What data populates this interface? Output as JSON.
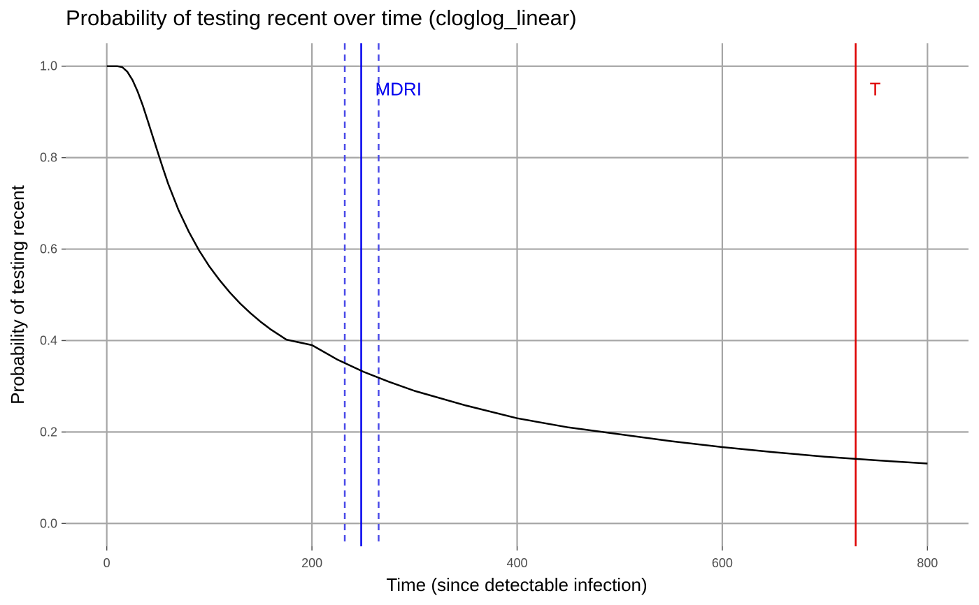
{
  "chart_data": {
    "type": "line",
    "title": "Probability of testing recent over time (cloglog_linear)",
    "xlabel": "Time (since detectable infection)",
    "ylabel": "Probability of testing recent",
    "xlim": [
      -40,
      840
    ],
    "ylim": [
      -0.05,
      1.05
    ],
    "xticks": [
      0,
      200,
      400,
      600,
      800
    ],
    "xtick_labels": [
      "0",
      "200",
      "400",
      "600",
      "800"
    ],
    "yticks": [
      0.0,
      0.2,
      0.4,
      0.6,
      0.8,
      1.0
    ],
    "ytick_labels": [
      "0.0",
      "0.2",
      "0.4",
      "0.6",
      "0.8",
      "1.0"
    ],
    "grid": true,
    "series": [
      {
        "color": "#000000",
        "x": [
          0,
          10,
          15,
          20,
          25,
          30,
          35,
          40,
          45,
          50,
          55,
          60,
          70,
          80,
          90,
          100,
          110,
          120,
          130,
          140,
          150,
          160,
          175,
          200,
          225,
          250,
          275,
          300,
          350,
          400,
          450,
          500,
          550,
          600,
          650,
          700,
          750,
          800
        ],
        "y": [
          1.0,
          1.0,
          0.998,
          0.988,
          0.97,
          0.945,
          0.915,
          0.88,
          0.845,
          0.81,
          0.775,
          0.742,
          0.685,
          0.638,
          0.597,
          0.562,
          0.532,
          0.505,
          0.481,
          0.46,
          0.441,
          0.424,
          0.402,
          0.39,
          0.358,
          0.332,
          0.31,
          0.29,
          0.258,
          0.23,
          0.21,
          0.195,
          0.18,
          0.167,
          0.156,
          0.146,
          0.138,
          0.131
        ]
      }
    ],
    "vlines": [
      {
        "x": 248,
        "color": "#0000ee",
        "style": "solid",
        "label": "MDRI"
      },
      {
        "x": 232,
        "color": "#4a4ae8",
        "style": "dashed"
      },
      {
        "x": 265,
        "color": "#4a4ae8",
        "style": "dashed"
      },
      {
        "x": 730,
        "color": "#dd0000",
        "style": "solid",
        "label": "T"
      }
    ]
  }
}
